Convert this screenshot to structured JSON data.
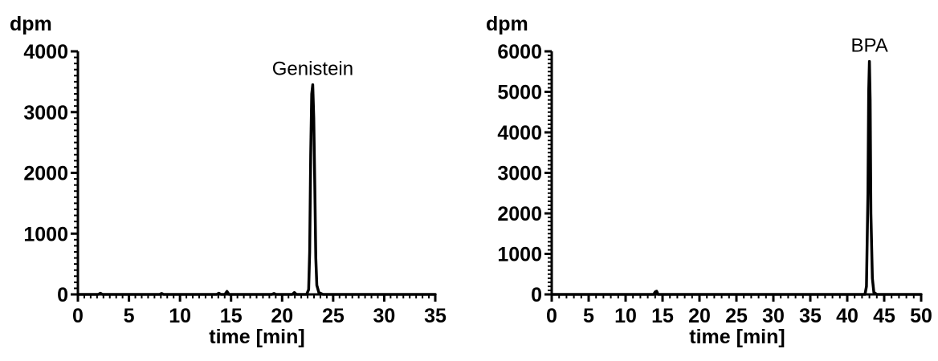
{
  "chart_data": [
    {
      "type": "line",
      "title": "",
      "ylabel": "dpm",
      "xlabel": "time [min]",
      "xlim": [
        0,
        35
      ],
      "ylim": [
        0,
        4000
      ],
      "x_ticks": [
        0,
        5,
        10,
        15,
        20,
        25,
        30,
        35
      ],
      "y_ticks": [
        0,
        1000,
        2000,
        3000,
        4000
      ],
      "x_tick_labels": [
        "0",
        "5",
        "10",
        "15",
        "20",
        "25",
        "30",
        "35"
      ],
      "y_tick_labels": [
        "0",
        "1000",
        "2000",
        "3000",
        "4000"
      ],
      "grid": false,
      "line_color": "#000000",
      "annotations": [
        {
          "text": "Genistein",
          "x": 23.0,
          "y": 3450
        }
      ],
      "series": [
        {
          "x": [
            0,
            2,
            2.2,
            2.4,
            6,
            8,
            8.2,
            8.4,
            12,
            13.6,
            13.8,
            14.0,
            14.4,
            14.6,
            14.8,
            16,
            19,
            19.2,
            19.4,
            21,
            21.2,
            21.4,
            22.0,
            22.4,
            22.6,
            22.7,
            22.8,
            22.9,
            23.0,
            23.1,
            23.2,
            23.3,
            23.4,
            23.6,
            24.0,
            26,
            30,
            34,
            35
          ],
          "y": [
            0,
            0,
            20,
            0,
            0,
            0,
            15,
            0,
            0,
            0,
            20,
            0,
            0,
            50,
            0,
            0,
            0,
            15,
            0,
            0,
            30,
            0,
            0,
            0,
            80,
            700,
            2300,
            3300,
            3450,
            2900,
            1800,
            600,
            150,
            30,
            0,
            0,
            0,
            0,
            0
          ]
        }
      ]
    },
    {
      "type": "line",
      "title": "",
      "ylabel": "dpm",
      "xlabel": "time [min]",
      "xlim": [
        0,
        50
      ],
      "ylim": [
        0,
        6000
      ],
      "x_ticks": [
        0,
        5,
        10,
        15,
        20,
        25,
        30,
        35,
        40,
        45,
        50
      ],
      "y_ticks": [
        0,
        1000,
        2000,
        3000,
        4000,
        5000,
        6000
      ],
      "x_tick_labels": [
        "0",
        "5",
        "10",
        "15",
        "20",
        "25",
        "30",
        "35",
        "40",
        "45",
        "50"
      ],
      "y_tick_labels": [
        "0",
        "1000",
        "2000",
        "3000",
        "4000",
        "5000",
        "6000"
      ],
      "grid": false,
      "line_color": "#000000",
      "annotations": [
        {
          "text": "BPA",
          "x": 43.0,
          "y": 5750
        }
      ],
      "series": [
        {
          "x": [
            0,
            13.8,
            14.0,
            14.2,
            14.4,
            20,
            30,
            40,
            42.0,
            42.4,
            42.6,
            42.8,
            42.9,
            43.0,
            43.1,
            43.2,
            43.4,
            43.6,
            44.0,
            47,
            50
          ],
          "y": [
            0,
            0,
            60,
            80,
            0,
            0,
            0,
            0,
            0,
            0,
            200,
            2500,
            5000,
            5750,
            4800,
            2000,
            400,
            50,
            0,
            0,
            0
          ]
        }
      ]
    }
  ]
}
